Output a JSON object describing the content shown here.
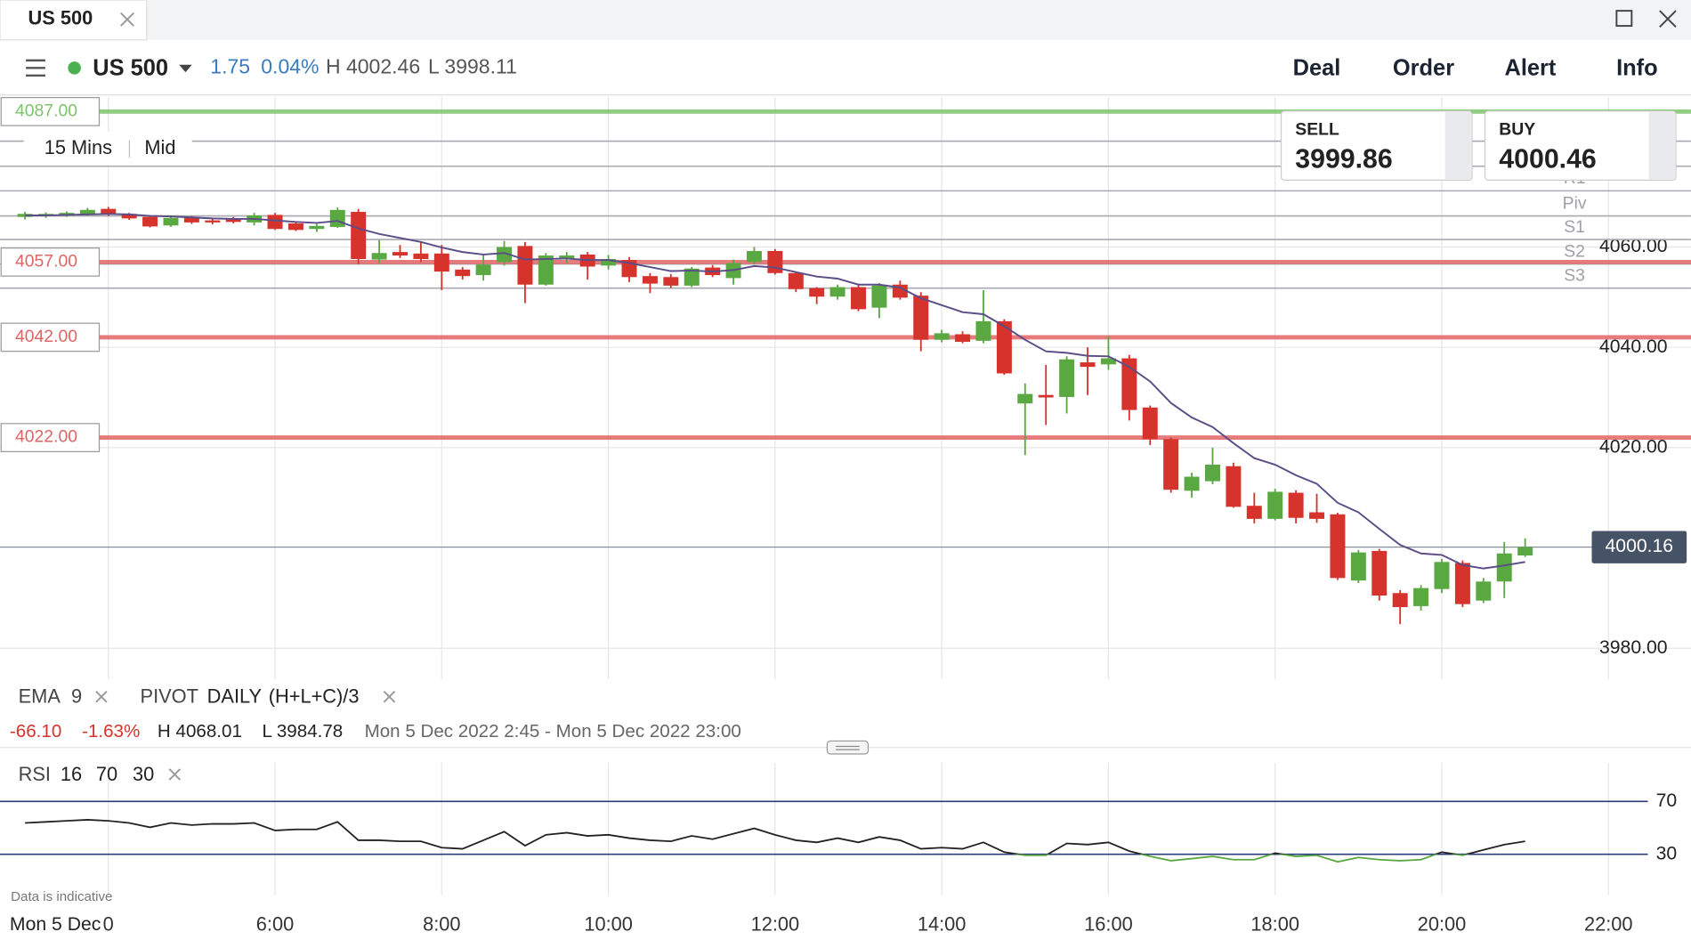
{
  "tab": {
    "title": "US 500"
  },
  "toolbar": {
    "instrument": "US 500",
    "change": "1.75",
    "change_pct": "0.04%",
    "high": "H 4002.46",
    "low": "L 3998.11",
    "actions": [
      "Deal",
      "Order",
      "Alert",
      "Info"
    ]
  },
  "quotes": {
    "sell_label": "SELL",
    "sell": "3999.86",
    "buy_label": "BUY",
    "buy": "4000.46"
  },
  "chart_controls": {
    "interval": "15 Mins",
    "price_type": "Mid"
  },
  "indicators": {
    "ema": [
      "EMA",
      "9"
    ],
    "pivot": [
      "PIVOT",
      "DAILY",
      "(H+L+C)/3"
    ],
    "rsi": [
      "RSI",
      "16",
      "70",
      "30"
    ]
  },
  "summary": {
    "change": "-66.10",
    "change_pct": "-1.63%",
    "high": "H 4068.01",
    "low": "L 3984.78",
    "range": "Mon 5 Dec 2022 2:45 - Mon 5 Dec 2022 23:00"
  },
  "disclaimer": "Data is indicative",
  "chart_data": [
    {
      "type": "candlestick",
      "date_label": "Mon 5 Dec",
      "x": [
        3,
        3.25,
        3.5,
        3.75,
        4,
        4.25,
        4.5,
        4.75,
        5,
        5.25,
        5.5,
        5.75,
        6,
        6.25,
        6.5,
        6.75,
        7,
        7.25,
        7.5,
        7.75,
        8,
        8.25,
        8.5,
        8.75,
        9,
        9.25,
        9.5,
        9.75,
        10,
        10.25,
        10.5,
        10.75,
        11,
        11.25,
        11.5,
        11.75,
        12,
        12.25,
        12.5,
        12.75,
        13,
        13.25,
        13.5,
        13.75,
        14,
        14.25,
        14.5,
        14.75,
        15,
        15.25,
        15.5,
        15.75,
        16,
        16.25,
        16.5,
        16.75,
        17,
        17.25,
        17.5,
        17.75,
        18,
        18.25,
        18.5,
        18.75,
        19,
        19.25,
        19.5,
        19.75,
        20,
        20.25,
        20.5,
        20.75,
        21
      ],
      "open": [
        4066.0,
        4066.2,
        4066.3,
        4066.5,
        4067.6,
        4066.6,
        4066.0,
        4064.3,
        4065.8,
        4065.3,
        4065.6,
        4064.9,
        4066.4,
        4064.7,
        4063.6,
        4064.0,
        4067.0,
        4057.5,
        4059.0,
        4058.7,
        4058.7,
        4055.5,
        4054.4,
        4057.0,
        4060.2,
        4052.5,
        4057.6,
        4058.5,
        4056.3,
        4057.4,
        4054.2,
        4054.0,
        4052.3,
        4055.9,
        4053.8,
        4057.0,
        4059.2,
        4054.8,
        4051.8,
        4050.1,
        4052.0,
        4047.9,
        4052.5,
        4050.3,
        4041.5,
        4042.6,
        4041.3,
        4045.2,
        4028.8,
        4030.5,
        4030.1,
        4037.0,
        4036.6,
        4037.8,
        4028.0,
        4021.7,
        4011.4,
        4013.3,
        4016.3,
        4008.4,
        4005.8,
        4011.0,
        4007.1,
        4006.7,
        3993.5,
        3999.4,
        3991.0,
        3988.4,
        3991.8,
        3997.0,
        3989.5,
        3993.3,
        3998.5
      ],
      "high": [
        4067.0,
        4066.9,
        4067.1,
        4067.8,
        4068.0,
        4066.8,
        4066.2,
        4066.3,
        4066.2,
        4065.6,
        4066.0,
        4066.8,
        4066.8,
        4065.0,
        4064.6,
        4067.9,
        4067.6,
        4061.4,
        4060.4,
        4061.0,
        4060.4,
        4056.0,
        4058.4,
        4061.2,
        4061.0,
        4058.8,
        4059.0,
        4059.0,
        4058.4,
        4058.0,
        4054.8,
        4054.6,
        4056.0,
        4056.4,
        4057.5,
        4060.0,
        4059.6,
        4055.0,
        4052.0,
        4052.5,
        4052.4,
        4052.8,
        4053.3,
        4051.0,
        4043.5,
        4043.2,
        4051.4,
        4045.6,
        4032.8,
        4036.5,
        4038.2,
        4040.0,
        4042.2,
        4038.5,
        4028.4,
        4022.0,
        4015.0,
        4020.0,
        4017.0,
        4011.0,
        4011.8,
        4011.5,
        4010.8,
        4007.0,
        3999.6,
        3999.8,
        3991.6,
        3992.6,
        3997.8,
        3997.5,
        3994.0,
        4001.2,
        4001.9
      ],
      "low": [
        4065.5,
        4065.8,
        4066.0,
        4066.2,
        4066.2,
        4065.4,
        4063.9,
        4064.0,
        4064.6,
        4064.5,
        4064.7,
        4064.3,
        4063.4,
        4063.2,
        4063.0,
        4063.8,
        4056.6,
        4056.8,
        4057.8,
        4057.0,
        4051.4,
        4053.5,
        4053.3,
        4056.3,
        4048.8,
        4052.3,
        4056.8,
        4053.5,
        4055.5,
        4053.0,
        4050.8,
        4051.8,
        4052.0,
        4054.0,
        4052.5,
        4056.5,
        4054.5,
        4051.0,
        4048.6,
        4049.5,
        4047.2,
        4045.8,
        4049.5,
        4039.2,
        4041.0,
        4040.8,
        4040.8,
        4034.5,
        4018.5,
        4024.5,
        4026.8,
        4030.5,
        4035.5,
        4025.4,
        4020.5,
        4011.0,
        4010.0,
        4012.7,
        4008.0,
        4004.9,
        4005.5,
        4004.9,
        4005.0,
        3993.6,
        3993.0,
        3989.5,
        3984.8,
        3987.5,
        3991.0,
        3988.2,
        3989.0,
        3990.0,
        3998.2
      ],
      "close": [
        4066.6,
        4066.6,
        4066.8,
        4067.4,
        4066.5,
        4065.7,
        4064.1,
        4065.8,
        4064.9,
        4064.9,
        4065.0,
        4066.3,
        4063.6,
        4063.4,
        4064.2,
        4067.4,
        4057.6,
        4058.8,
        4058.3,
        4057.6,
        4055.1,
        4054.2,
        4056.5,
        4060.0,
        4052.5,
        4058.3,
        4058.3,
        4056.1,
        4057.6,
        4054.0,
        4052.7,
        4052.3,
        4055.7,
        4054.4,
        4056.8,
        4059.2,
        4054.8,
        4051.6,
        4050.1,
        4052.0,
        4047.6,
        4052.3,
        4049.9,
        4041.5,
        4042.8,
        4041.1,
        4045.2,
        4034.8,
        4030.7,
        4030.0,
        4037.6,
        4036.1,
        4037.8,
        4027.5,
        4021.7,
        4011.6,
        4014.2,
        4016.6,
        4008.2,
        4005.8,
        4011.2,
        4006.0,
        4005.8,
        3994.0,
        3999.1,
        3990.5,
        3988.2,
        3992.0,
        3997.2,
        3988.8,
        3993.3,
        3998.9,
        4000.16
      ],
      "up_color": "#5aa842",
      "down_color": "#d6332c",
      "overlays": [
        {
          "color": "#5b4e86",
          "values": [
            4066.3,
            4066.3,
            4066.4,
            4066.5,
            4066.6,
            4066.5,
            4066.2,
            4066.1,
            4065.9,
            4065.7,
            4065.6,
            4065.6,
            4065.3,
            4065.0,
            4064.8,
            4065.2,
            4063.7,
            4062.6,
            4061.8,
            4061.0,
            4059.9,
            4059.0,
            4058.5,
            4058.8,
            4057.5,
            4057.6,
            4057.7,
            4057.4,
            4057.4,
            4056.8,
            4056.0,
            4055.2,
            4055.3,
            4055.1,
            4055.4,
            4056.2,
            4055.9,
            4055.0,
            4054.1,
            4053.7,
            4052.5,
            4052.5,
            4051.9,
            4049.8,
            4048.4,
            4047.0,
            4046.6,
            4044.2,
            4041.5,
            4039.2,
            4038.9,
            4038.3,
            4038.2,
            4036.1,
            4033.2,
            4028.9,
            4026.0,
            4024.1,
            4020.9,
            4017.9,
            4016.6,
            4014.5,
            4012.8,
            4009.0,
            4007.1,
            4003.8,
            4000.6,
            3998.9,
            3998.6,
            3996.6,
            3995.9,
            3996.5,
            3997.2
          ]
        }
      ],
      "pivots": {
        "color": "#a9a9b0",
        "levels": [
          4081.1,
          4076.1,
          4071.2,
          4066.2,
          4061.5,
          4056.6,
          4051.8
        ],
        "labels": [
          null,
          null,
          "R1",
          "Piv",
          "S1",
          "S2",
          "S3"
        ]
      },
      "alerts": [
        {
          "value": 4087,
          "label": "4087.00",
          "color": "#7dc36b"
        },
        {
          "value": 4057,
          "label": "4057.00",
          "color": "#e06464"
        },
        {
          "value": 4042,
          "label": "4042.00",
          "color": "#e06464"
        },
        {
          "value": 4022,
          "label": "4022.00",
          "color": "#e06464"
        }
      ],
      "last_price": {
        "value": 4000.16,
        "label": "4000.16"
      },
      "xlim": [
        2.7,
        22.99
      ],
      "xticks": [
        {
          "value": 4,
          "label": "0"
        },
        {
          "value": 6,
          "label": "6:00"
        },
        {
          "value": 8,
          "label": "8:00"
        },
        {
          "value": 10,
          "label": "10:00"
        },
        {
          "value": 12,
          "label": "12:00"
        },
        {
          "value": 14,
          "label": "14:00"
        },
        {
          "value": 16,
          "label": "16:00"
        },
        {
          "value": 18,
          "label": "18:00"
        },
        {
          "value": 20,
          "label": "20:00"
        },
        {
          "value": 22,
          "label": "22:00"
        }
      ],
      "ylim": [
        3974,
        4090
      ],
      "yticks": [
        {
          "value": 3980,
          "label": "3980.00"
        },
        {
          "value": 4020,
          "label": "4020.00"
        },
        {
          "value": 4040,
          "label": "4040.00"
        },
        {
          "value": 4060,
          "label": "4060.00"
        }
      ],
      "grid": true
    },
    {
      "type": "line",
      "values": [
        53.7,
        54.5,
        55.3,
        56.1,
        55.3,
        53.7,
        50.4,
        53.7,
        52.1,
        53.0,
        53.0,
        53.7,
        48.0,
        48.8,
        48.8,
        54.5,
        40.6,
        40.6,
        39.8,
        39.8,
        35.0,
        34.1,
        40.6,
        47.1,
        36.5,
        44.7,
        46.3,
        43.9,
        44.7,
        42.2,
        40.6,
        39.8,
        43.9,
        41.4,
        45.5,
        49.6,
        44.7,
        40.6,
        39.0,
        42.2,
        39.0,
        43.1,
        40.6,
        34.1,
        35.0,
        34.1,
        39.0,
        31.6,
        29.2,
        29.2,
        38.2,
        37.3,
        39.0,
        32.4,
        28.4,
        25.1,
        26.7,
        28.4,
        25.9,
        25.9,
        30.8,
        28.4,
        29.2,
        24.3,
        27.6,
        25.9,
        25.1,
        25.9,
        31.6,
        29.2,
        33.3,
        37.3,
        39.8
      ],
      "color": "#222222",
      "oversold_level": 30,
      "oversold_color": "#5aa842",
      "level_color": "#2b3d7c",
      "ylim": [
        0,
        100
      ],
      "yticks": [
        30,
        70
      ]
    }
  ]
}
